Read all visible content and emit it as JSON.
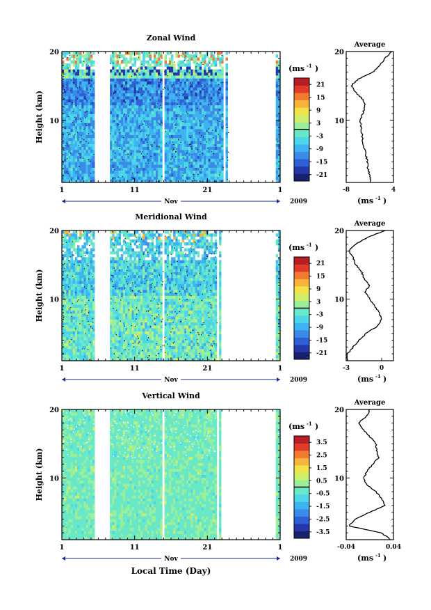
{
  "colors": {
    "colormap": [
      "#1a1f6e",
      "#2438a8",
      "#2f5fd4",
      "#3a8ae8",
      "#3db4f0",
      "#4cd6e8",
      "#69e8c8",
      "#9cef9a",
      "#cfee6a",
      "#f2e24a",
      "#f8b43a",
      "#f27a2e",
      "#e23a28",
      "#b81c24"
    ]
  },
  "shared": {
    "x_ticks": [
      "1",
      "11",
      "21",
      "1"
    ],
    "x_tick_days": [
      0,
      10,
      20,
      30
    ],
    "month_label": "Nov",
    "year_label": "2009",
    "x_title": "Local Time (Day)",
    "y_title": "Height (km)",
    "y_ticks": [
      "10",
      "20"
    ],
    "y_tick_values": [
      10,
      20
    ],
    "ylim": [
      1,
      20
    ],
    "xlim_days": [
      0,
      30
    ],
    "unit_label": "(ms",
    "unit_exp": "-1",
    "unit_close": ")",
    "avg_title": "Average"
  },
  "chart_data": [
    {
      "type": "heatmap",
      "title": "Zonal Wind",
      "ylabel": "Height (km)",
      "xlabel": "Local Time (Day)",
      "data_gaps_days": [
        [
          4.4,
          6.6
        ],
        [
          13.9,
          14.0
        ],
        [
          22.2,
          22.5
        ],
        [
          22.9,
          29.5
        ]
      ],
      "colorbar_ticks": [
        "21",
        "15",
        "9",
        "3",
        "-3",
        "-9",
        "-15",
        "-21"
      ],
      "colorbar_range": [
        -24,
        24
      ],
      "average_profile": {
        "title": "Average",
        "xlim": [
          -8,
          4
        ],
        "xticks": [
          "-8",
          "4"
        ],
        "height_km": [
          1,
          2,
          3,
          4,
          5,
          6,
          7,
          8,
          9,
          10,
          11,
          12,
          13,
          14,
          15,
          16,
          17,
          18,
          19,
          20
        ],
        "u_ms": [
          -1.8,
          -2.0,
          -2.5,
          -2.6,
          -3.0,
          -3.4,
          -3.8,
          -4.0,
          -4.2,
          -4.4,
          -3.8,
          -3.2,
          -3.6,
          -5.5,
          -6.8,
          -5.0,
          -1.2,
          0.6,
          1.8,
          3.6
        ]
      }
    },
    {
      "type": "heatmap",
      "title": "Meridional Wind",
      "ylabel": "Height (km)",
      "xlabel": "Local Time (Day)",
      "data_gaps_days": [
        [
          4.4,
          6.6
        ],
        [
          13.9,
          14.0
        ],
        [
          21.3,
          21.6
        ],
        [
          21.9,
          29.5
        ]
      ],
      "colorbar_ticks": [
        "21",
        "15",
        "9",
        "3",
        "-3",
        "-9",
        "-15",
        "-21"
      ],
      "colorbar_range": [
        -24,
        24
      ],
      "average_profile": {
        "title": "Average",
        "xlim": [
          -3,
          1
        ],
        "xticks": [
          "-3",
          "0"
        ],
        "height_km": [
          1,
          2,
          3,
          4,
          5,
          6,
          7,
          8,
          9,
          10,
          11,
          12,
          13,
          14,
          15,
          16,
          17,
          18,
          19,
          20
        ],
        "v_ms": [
          -2.9,
          -2.9,
          -2.4,
          -1.9,
          -1.3,
          -0.4,
          0.0,
          -0.2,
          -0.6,
          -1.0,
          -1.4,
          -1.0,
          -1.5,
          -1.7,
          -2.2,
          -2.4,
          -2.8,
          -2.2,
          -1.2,
          0.3
        ]
      }
    },
    {
      "type": "heatmap",
      "title": "Vertical Wind",
      "ylabel": "Height (km)",
      "xlabel": "Local Time (Day)",
      "data_gaps_days": [
        [
          4.4,
          6.6
        ],
        [
          13.9,
          14.0
        ],
        [
          21.3,
          21.6
        ],
        [
          21.9,
          29.5
        ]
      ],
      "colorbar_ticks": [
        "3.5",
        "2.5",
        "1.5",
        "0.5",
        "-0.5",
        "-1.5",
        "-2.5",
        "-3.5"
      ],
      "colorbar_range": [
        -4,
        4
      ],
      "average_profile": {
        "title": "Average",
        "xlim": [
          -0.04,
          0.04
        ],
        "xticks": [
          "-0.04",
          "0.04"
        ],
        "height_km": [
          1,
          2,
          3,
          4,
          5,
          6,
          7,
          8,
          9,
          10,
          11,
          12,
          13,
          14,
          15,
          16,
          17,
          18,
          19,
          20
        ],
        "w_ms": [
          0.035,
          0.02,
          -0.035,
          -0.025,
          0.0,
          0.025,
          0.02,
          0.01,
          -0.005,
          -0.01,
          -0.005,
          0.005,
          0.015,
          0.012,
          0.01,
          0.0,
          -0.01,
          -0.02,
          -0.005,
          0.0
        ]
      }
    }
  ]
}
